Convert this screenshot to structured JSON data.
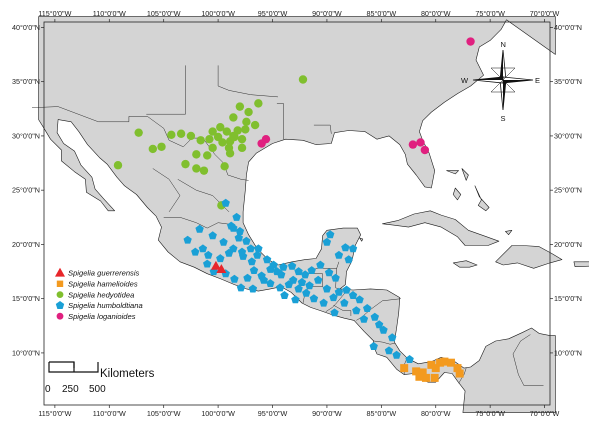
{
  "map": {
    "extent": {
      "lon_min": -116,
      "lon_max": -69.5,
      "lat_min": 5.2,
      "lat_max": 40.5
    },
    "colors": {
      "land": "#d4d4d4",
      "sea": "#ffffff",
      "border": "#1a1a1a"
    },
    "x_ticks": [
      {
        "lon": -115,
        "label": "115°0'0\"W"
      },
      {
        "lon": -110,
        "label": "110°0'0\"W"
      },
      {
        "lon": -105,
        "label": "105°0'0\"W"
      },
      {
        "lon": -100,
        "label": "100°0'0\"W"
      },
      {
        "lon": -95,
        "label": "95°0'0\"W"
      },
      {
        "lon": -90,
        "label": "90°0'0\"W"
      },
      {
        "lon": -85,
        "label": "85°0'0\"W"
      },
      {
        "lon": -80,
        "label": "80°0'0\"W"
      },
      {
        "lon": -75,
        "label": "75°0'0\"W"
      },
      {
        "lon": -70,
        "label": "70°0'0\"W"
      }
    ],
    "y_ticks": [
      {
        "lat": 40,
        "label": "40°0'0\"N"
      },
      {
        "lat": 35,
        "label": "35°0'0\"N"
      },
      {
        "lat": 30,
        "label": "30°0'0\"N"
      },
      {
        "lat": 25,
        "label": "25°0'0\"N"
      },
      {
        "lat": 20,
        "label": "20°0'0\"N"
      },
      {
        "lat": 15,
        "label": "15°0'0\"N"
      },
      {
        "lat": 10,
        "label": "10°0'0\"N"
      }
    ],
    "compass": {
      "n": "N",
      "s": "S",
      "e": "E",
      "w": "W"
    },
    "scale_bar": {
      "title": "Kilometers",
      "labels": [
        "0",
        "250",
        "500"
      ]
    },
    "legend": [
      {
        "id": "guerrerensis",
        "label": "Spigelia guerrerensis",
        "shape": "triangle",
        "color": "#e8262a"
      },
      {
        "id": "hamelioides",
        "label": "Spigelia hamelioides",
        "shape": "square",
        "color": "#f39a1f"
      },
      {
        "id": "hedyotidea",
        "label": "Spigelia hedyotidea",
        "shape": "circle",
        "color": "#80bf2e"
      },
      {
        "id": "humboldtiana",
        "label": "Spigelia humboldtiana",
        "shape": "pentagon",
        "color": "#1aa0d6"
      },
      {
        "id": "loganioides",
        "label": "Spigelia loganioides",
        "shape": "circle",
        "color": "#e0207f"
      }
    ]
  },
  "occurrences": {
    "hedyotidea": [
      [
        -92.2,
        35.2
      ],
      [
        -96.3,
        33.0
      ],
      [
        -97.2,
        32.2
      ],
      [
        -98.0,
        32.7
      ],
      [
        -98.6,
        31.7
      ],
      [
        -97.4,
        31.3
      ],
      [
        -96.6,
        31.0
      ],
      [
        -97.5,
        30.6
      ],
      [
        -98.2,
        30.5
      ],
      [
        -99.2,
        30.4
      ],
      [
        -99.8,
        30.8
      ],
      [
        -100.5,
        30.4
      ],
      [
        -100.0,
        29.9
      ],
      [
        -98.5,
        29.9
      ],
      [
        -97.8,
        29.7
      ],
      [
        -98.9,
        29.5
      ],
      [
        -99.6,
        29.4
      ],
      [
        -100.8,
        29.7
      ],
      [
        -101.6,
        29.6
      ],
      [
        -102.5,
        30.0
      ],
      [
        -103.4,
        30.2
      ],
      [
        -104.3,
        30.1
      ],
      [
        -105.2,
        29.0
      ],
      [
        -106.0,
        28.8
      ],
      [
        -107.3,
        30.3
      ],
      [
        -102.0,
        28.3
      ],
      [
        -101.0,
        28.2
      ],
      [
        -103.0,
        27.4
      ],
      [
        -102.0,
        27.0
      ],
      [
        -101.3,
        26.8
      ],
      [
        -99.4,
        27.2
      ],
      [
        -98.9,
        28.4
      ],
      [
        -109.2,
        27.3
      ],
      [
        -98.6,
        30.0
      ],
      [
        -97.8,
        28.9
      ],
      [
        -99.0,
        28.9
      ],
      [
        -100.5,
        28.9
      ],
      [
        -99.7,
        23.6
      ]
    ],
    "loganioides": [
      [
        -76.8,
        38.7
      ],
      [
        -95.6,
        29.7
      ],
      [
        -96.0,
        29.3
      ],
      [
        -82.1,
        29.2
      ],
      [
        -81.4,
        29.4
      ],
      [
        -81.0,
        28.7
      ]
    ],
    "guerrerensis": [
      [
        -100.2,
        18.0
      ],
      [
        -99.7,
        17.7
      ]
    ],
    "hamelioides": [
      [
        -82.9,
        8.6
      ],
      [
        -81.8,
        8.3
      ],
      [
        -81.2,
        8.2
      ],
      [
        -80.9,
        7.7
      ],
      [
        -80.1,
        7.7
      ],
      [
        -80.0,
        8.6
      ],
      [
        -79.6,
        9.1
      ],
      [
        -79.2,
        9.2
      ],
      [
        -78.6,
        9.1
      ],
      [
        -78.0,
        8.6
      ],
      [
        -77.8,
        8.1
      ],
      [
        -80.4,
        8.9
      ],
      [
        -81.5,
        7.8
      ]
    ],
    "humboldtiana": [
      [
        -99.3,
        23.8
      ],
      [
        -98.3,
        22.5
      ],
      [
        -98.8,
        21.7
      ],
      [
        -98.0,
        21.2
      ],
      [
        -97.4,
        20.3
      ],
      [
        -97.0,
        19.6
      ],
      [
        -96.4,
        19.0
      ],
      [
        -96.9,
        18.4
      ],
      [
        -97.7,
        18.9
      ],
      [
        -98.6,
        19.6
      ],
      [
        -99.5,
        20.2
      ],
      [
        -100.5,
        20.8
      ],
      [
        -101.4,
        19.6
      ],
      [
        -102.8,
        20.4
      ],
      [
        -99.0,
        19.2
      ],
      [
        -98.1,
        20.6
      ],
      [
        -96.7,
        17.6
      ],
      [
        -96.0,
        17.1
      ],
      [
        -95.2,
        16.4
      ],
      [
        -94.6,
        17.5
      ],
      [
        -94.0,
        17.9
      ],
      [
        -93.2,
        18.0
      ],
      [
        -92.6,
        17.5
      ],
      [
        -92.0,
        17.2
      ],
      [
        -91.4,
        17.6
      ],
      [
        -90.6,
        18.1
      ],
      [
        -89.8,
        17.4
      ],
      [
        -89.2,
        16.9
      ],
      [
        -88.9,
        15.6
      ],
      [
        -88.2,
        15.8
      ],
      [
        -87.6,
        15.3
      ],
      [
        -87.0,
        14.9
      ],
      [
        -86.3,
        14.1
      ],
      [
        -85.6,
        13.3
      ],
      [
        -84.8,
        12.1
      ],
      [
        -84.0,
        11.4
      ],
      [
        -84.3,
        10.2
      ],
      [
        -83.6,
        9.8
      ],
      [
        -85.7,
        10.6
      ],
      [
        -82.4,
        9.4
      ],
      [
        -90.3,
        14.6
      ],
      [
        -91.2,
        15.0
      ],
      [
        -91.9,
        15.5
      ],
      [
        -92.6,
        15.9
      ],
      [
        -93.5,
        16.3
      ],
      [
        -94.3,
        16.0
      ],
      [
        -95.8,
        16.7
      ],
      [
        -97.3,
        16.9
      ],
      [
        -98.5,
        16.8
      ],
      [
        -99.3,
        17.3
      ],
      [
        -100.4,
        17.5
      ],
      [
        -101.0,
        18.2
      ],
      [
        -96.3,
        19.6
      ],
      [
        -95.5,
        18.6
      ],
      [
        -94.9,
        18.1
      ],
      [
        -94.2,
        17.2
      ],
      [
        -93.1,
        16.7
      ],
      [
        -92.3,
        16.5
      ],
      [
        -91.6,
        16.2
      ],
      [
        -90.8,
        16.7
      ],
      [
        -90.0,
        15.9
      ],
      [
        -89.4,
        15.1
      ],
      [
        -88.4,
        14.6
      ],
      [
        -87.3,
        13.9
      ],
      [
        -86.6,
        13.1
      ],
      [
        -85.2,
        12.6
      ],
      [
        -89.3,
        13.7
      ],
      [
        -88.9,
        19.0
      ],
      [
        -88.3,
        19.7
      ],
      [
        -88.0,
        18.6
      ],
      [
        -87.6,
        19.6
      ],
      [
        -93.9,
        15.3
      ],
      [
        -92.9,
        14.9
      ],
      [
        -96.8,
        15.9
      ],
      [
        -97.9,
        16.0
      ],
      [
        -99.8,
        18.7
      ],
      [
        -100.9,
        19.0
      ],
      [
        -102.1,
        19.3
      ],
      [
        -95.2,
        17.7
      ],
      [
        -90.0,
        20.2
      ],
      [
        -89.7,
        20.9
      ],
      [
        -98.6,
        21.5
      ],
      [
        -97.8,
        19.3
      ],
      [
        -101.7,
        21.4
      ]
    ]
  }
}
